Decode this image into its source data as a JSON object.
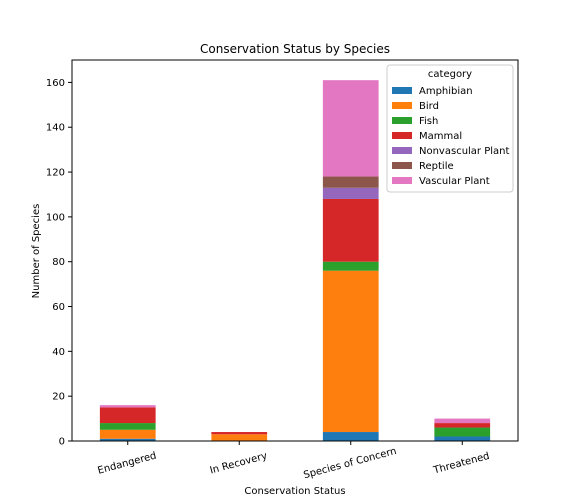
{
  "chart_data": {
    "type": "bar",
    "stacked": true,
    "title": "Conservation Status by Species",
    "xlabel": "Conservation Status",
    "ylabel": "Number of Species",
    "categories": [
      "Endangered",
      "In Recovery",
      "Species of Concern",
      "Threatened"
    ],
    "ylim": [
      0,
      170
    ],
    "yticks": [
      0,
      20,
      40,
      60,
      80,
      100,
      120,
      140,
      160
    ],
    "legend_title": "category",
    "legend_position": "top-right",
    "grid": false,
    "series": [
      {
        "name": "Amphibian",
        "color": "#1f77b4",
        "values": [
          1,
          0,
          4,
          2
        ]
      },
      {
        "name": "Bird",
        "color": "#ff7f0e",
        "values": [
          4,
          3,
          72,
          0
        ]
      },
      {
        "name": "Fish",
        "color": "#2ca02c",
        "values": [
          3,
          0,
          4,
          4
        ]
      },
      {
        "name": "Mammal",
        "color": "#d62728",
        "values": [
          7,
          1,
          28,
          2
        ]
      },
      {
        "name": "Nonvascular Plant",
        "color": "#9467bd",
        "values": [
          0,
          0,
          5,
          0
        ]
      },
      {
        "name": "Reptile",
        "color": "#8c564b",
        "values": [
          0,
          0,
          5,
          0
        ]
      },
      {
        "name": "Vascular Plant",
        "color": "#e377c2",
        "values": [
          1,
          0,
          43,
          2
        ]
      }
    ]
  }
}
